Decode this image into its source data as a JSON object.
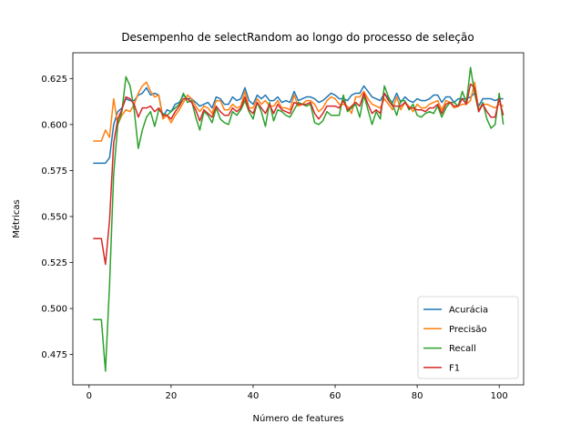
{
  "chart_data": {
    "type": "line",
    "title": "Desempenho de selectRandom ao longo do processo de seleção",
    "xlabel": "Número de features",
    "ylabel": "Métricas",
    "xlim": [
      -3.95,
      105.95
    ],
    "ylim": [
      0.4585,
      0.639
    ],
    "xticks": [
      0,
      20,
      40,
      60,
      80,
      100
    ],
    "yticks": [
      0.475,
      0.5,
      0.525,
      0.55,
      0.575,
      0.6,
      0.625
    ],
    "ytick_labels": [
      "0.475",
      "0.500",
      "0.525",
      "0.550",
      "0.575",
      "0.600",
      "0.625"
    ],
    "xtick_labels": [
      "0",
      "20",
      "40",
      "60",
      "80",
      "100"
    ],
    "grid": false,
    "legend_position": "lower-right",
    "x": [
      1,
      2,
      3,
      4,
      5,
      6,
      7,
      8,
      9,
      10,
      11,
      12,
      13,
      14,
      15,
      16,
      17,
      18,
      19,
      20,
      21,
      22,
      23,
      24,
      25,
      26,
      27,
      28,
      29,
      30,
      31,
      32,
      33,
      34,
      35,
      36,
      37,
      38,
      39,
      40,
      41,
      42,
      43,
      44,
      45,
      46,
      47,
      48,
      49,
      50,
      51,
      52,
      53,
      54,
      55,
      56,
      57,
      58,
      59,
      60,
      61,
      62,
      63,
      64,
      65,
      66,
      67,
      68,
      69,
      70,
      71,
      72,
      73,
      74,
      75,
      76,
      77,
      78,
      79,
      80,
      81,
      82,
      83,
      84,
      85,
      86,
      87,
      88,
      89,
      90,
      91,
      92,
      93,
      94,
      95,
      96,
      97,
      98,
      99,
      100,
      101
    ],
    "series": [
      {
        "name": "Acurácia",
        "color": "#1f77b4",
        "values": [
          0.579,
          0.579,
          0.579,
          0.579,
          0.582,
          0.6,
          0.607,
          0.609,
          0.614,
          0.613,
          0.613,
          0.616,
          0.617,
          0.62,
          0.616,
          0.617,
          0.616,
          0.604,
          0.608,
          0.607,
          0.611,
          0.612,
          0.616,
          0.614,
          0.614,
          0.612,
          0.61,
          0.611,
          0.612,
          0.609,
          0.615,
          0.614,
          0.611,
          0.611,
          0.615,
          0.613,
          0.614,
          0.62,
          0.613,
          0.611,
          0.616,
          0.614,
          0.616,
          0.613,
          0.613,
          0.615,
          0.612,
          0.613,
          0.612,
          0.618,
          0.613,
          0.614,
          0.615,
          0.615,
          0.614,
          0.612,
          0.613,
          0.615,
          0.617,
          0.616,
          0.614,
          0.614,
          0.613,
          0.616,
          0.617,
          0.617,
          0.621,
          0.618,
          0.615,
          0.614,
          0.613,
          0.617,
          0.614,
          0.612,
          0.617,
          0.612,
          0.615,
          0.613,
          0.612,
          0.614,
          0.613,
          0.613,
          0.614,
          0.616,
          0.616,
          0.612,
          0.615,
          0.615,
          0.612,
          0.614,
          0.614,
          0.614,
          0.615,
          0.617,
          0.61,
          0.614,
          0.614,
          0.614,
          0.613,
          0.614,
          0.614
        ]
      },
      {
        "name": "Precisão",
        "color": "#ff7f0e",
        "values": [
          0.591,
          0.591,
          0.591,
          0.597,
          0.593,
          0.614,
          0.6,
          0.605,
          0.608,
          0.607,
          0.611,
          0.617,
          0.621,
          0.623,
          0.618,
          0.615,
          0.616,
          0.603,
          0.605,
          0.601,
          0.605,
          0.608,
          0.612,
          0.616,
          0.614,
          0.61,
          0.607,
          0.61,
          0.609,
          0.606,
          0.613,
          0.613,
          0.608,
          0.608,
          0.611,
          0.609,
          0.61,
          0.618,
          0.609,
          0.609,
          0.614,
          0.611,
          0.613,
          0.61,
          0.61,
          0.613,
          0.609,
          0.609,
          0.608,
          0.616,
          0.61,
          0.611,
          0.613,
          0.613,
          0.611,
          0.607,
          0.609,
          0.613,
          0.615,
          0.614,
          0.611,
          0.611,
          0.61,
          0.606,
          0.615,
          0.615,
          0.618,
          0.614,
          0.611,
          0.61,
          0.609,
          0.614,
          0.611,
          0.608,
          0.615,
          0.608,
          0.612,
          0.61,
          0.607,
          0.611,
          0.609,
          0.609,
          0.611,
          0.612,
          0.613,
          0.608,
          0.613,
          0.612,
          0.609,
          0.61,
          0.611,
          0.611,
          0.613,
          0.623,
          0.608,
          0.611,
          0.611,
          0.61,
          0.609,
          0.611,
          0.61
        ]
      },
      {
        "name": "Recall",
        "color": "#2ca02c",
        "values": [
          0.494,
          0.494,
          0.494,
          0.466,
          0.513,
          0.573,
          0.6,
          0.607,
          0.626,
          0.621,
          0.608,
          0.587,
          0.597,
          0.604,
          0.607,
          0.599,
          0.608,
          0.606,
          0.605,
          0.607,
          0.609,
          0.611,
          0.617,
          0.612,
          0.613,
          0.604,
          0.597,
          0.607,
          0.605,
          0.601,
          0.609,
          0.603,
          0.601,
          0.6,
          0.607,
          0.605,
          0.608,
          0.613,
          0.607,
          0.603,
          0.612,
          0.607,
          0.599,
          0.612,
          0.602,
          0.608,
          0.607,
          0.605,
          0.604,
          0.608,
          0.612,
          0.611,
          0.61,
          0.611,
          0.601,
          0.6,
          0.602,
          0.607,
          0.605,
          0.605,
          0.605,
          0.616,
          0.607,
          0.609,
          0.611,
          0.604,
          0.616,
          0.608,
          0.6,
          0.607,
          0.603,
          0.621,
          0.615,
          0.611,
          0.605,
          0.613,
          0.613,
          0.608,
          0.611,
          0.605,
          0.604,
          0.606,
          0.607,
          0.606,
          0.61,
          0.604,
          0.609,
          0.612,
          0.612,
          0.61,
          0.618,
          0.612,
          0.631,
          0.617,
          0.607,
          0.612,
          0.603,
          0.598,
          0.6,
          0.617,
          0.6
        ]
      },
      {
        "name": "F1",
        "color": "#d62728",
        "values": [
          0.538,
          0.538,
          0.538,
          0.524,
          0.548,
          0.59,
          0.603,
          0.608,
          0.615,
          0.614,
          0.611,
          0.604,
          0.609,
          0.609,
          0.61,
          0.607,
          0.609,
          0.605,
          0.605,
          0.603,
          0.607,
          0.61,
          0.614,
          0.614,
          0.612,
          0.608,
          0.602,
          0.608,
          0.606,
          0.604,
          0.61,
          0.607,
          0.605,
          0.605,
          0.609,
          0.607,
          0.609,
          0.615,
          0.608,
          0.606,
          0.612,
          0.609,
          0.606,
          0.611,
          0.606,
          0.611,
          0.608,
          0.607,
          0.606,
          0.612,
          0.611,
          0.611,
          0.611,
          0.612,
          0.606,
          0.603,
          0.606,
          0.61,
          0.61,
          0.61,
          0.609,
          0.613,
          0.608,
          0.61,
          0.612,
          0.61,
          0.617,
          0.611,
          0.606,
          0.608,
          0.606,
          0.617,
          0.613,
          0.61,
          0.61,
          0.61,
          0.612,
          0.609,
          0.609,
          0.608,
          0.608,
          0.607,
          0.609,
          0.609,
          0.611,
          0.606,
          0.611,
          0.612,
          0.61,
          0.61,
          0.614,
          0.611,
          0.622,
          0.62,
          0.607,
          0.611,
          0.607,
          0.604,
          0.604,
          0.614,
          0.605
        ]
      }
    ]
  }
}
